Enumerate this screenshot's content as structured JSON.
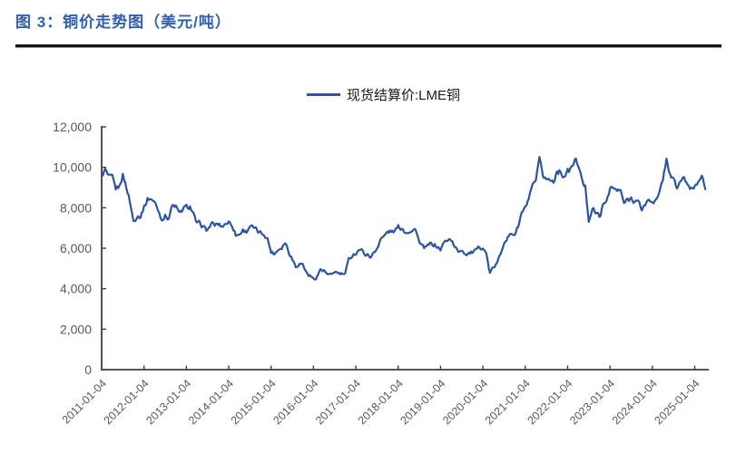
{
  "figure": {
    "title": "图 3：铜价走势图（美元/吨）"
  },
  "legend": {
    "label": "现货结算价:LME铜",
    "line_color": "#2B55A4"
  },
  "chart_data": {
    "type": "line",
    "title": "铜价走势图（美元/吨）",
    "unit": "美元/吨",
    "x_start": "2011-01",
    "x_end": "2025-04",
    "cadence": "monthly",
    "x_tick_labels": [
      "2011-01-04",
      "2012-01-04",
      "2013-01-04",
      "2014-01-04",
      "2015-01-04",
      "2016-01-04",
      "2017-01-04",
      "2018-01-04",
      "2019-01-04",
      "2020-01-04",
      "2021-01-04",
      "2022-01-04",
      "2023-01-04",
      "2024-01-04",
      "2025-01-04"
    ],
    "y_ticks": [
      0,
      2000,
      4000,
      6000,
      8000,
      10000,
      12000
    ],
    "y_tick_labels": [
      "0",
      "2,000",
      "4,000",
      "6,000",
      "8,000",
      "10,000",
      "12,000"
    ],
    "ylim": [
      0,
      12000
    ],
    "grid": false,
    "legend_position": "top-center",
    "axis_color": "#3F3F3F",
    "tick_label_color": "#595959",
    "series": [
      {
        "name": "现货结算价:LME铜",
        "color": "#2B55A4",
        "values": [
          9556,
          9867,
          9503,
          9492,
          8959,
          9045,
          9619,
          9041,
          8300,
          7347,
          7581,
          7565,
          8040,
          8422,
          8457,
          8260,
          7913,
          7423,
          7584,
          7500,
          8086,
          8082,
          7697,
          7940,
          8047,
          8060,
          7663,
          7202,
          7240,
          7000,
          6906,
          7193,
          7159,
          7203,
          7070,
          7214,
          7291,
          7149,
          6650,
          6674,
          6891,
          6821,
          7105,
          6996,
          6872,
          6737,
          6713,
          6446,
          5830,
          5729,
          5939,
          6042,
          6294,
          5833,
          5456,
          5127,
          5217,
          5216,
          4799,
          4638,
          4480,
          4598,
          4954,
          4872,
          4695,
          4642,
          4864,
          4751,
          4722,
          4731,
          5450,
          5660,
          5754,
          5940,
          5824,
          5683,
          5599,
          5719,
          5985,
          6485,
          6577,
          6807,
          6826,
          6834,
          7065,
          7006,
          6799,
          6851,
          6825,
          6965,
          6250,
          6048,
          6050,
          6219,
          6195,
          6075,
          5932,
          6278,
          6439,
          6445,
          6028,
          5868,
          5940,
          5709,
          5746,
          5792,
          5860,
          6075,
          6049,
          5686,
          4760,
          5058,
          5234,
          5743,
          6354,
          6499,
          6712,
          6703,
          7063,
          7755,
          7971,
          8460,
          9004,
          9336,
          10350,
          9613,
          9434,
          9357,
          9316,
          9830,
          9766,
          9550,
          9775,
          9941,
          10350,
          10183,
          9362,
          9028,
          7400,
          7959,
          7736,
          7595,
          8051,
          8367,
          8999,
          8941,
          8856,
          8815,
          8234,
          8386,
          8477,
          8349,
          8267,
          7939,
          8173,
          8386,
          8344,
          8312,
          8680,
          9460,
          10400,
          9656,
          9352,
          8988,
          9312,
          9553,
          9012,
          8960,
          9057,
          9331,
          9702,
          8850
        ]
      }
    ]
  }
}
